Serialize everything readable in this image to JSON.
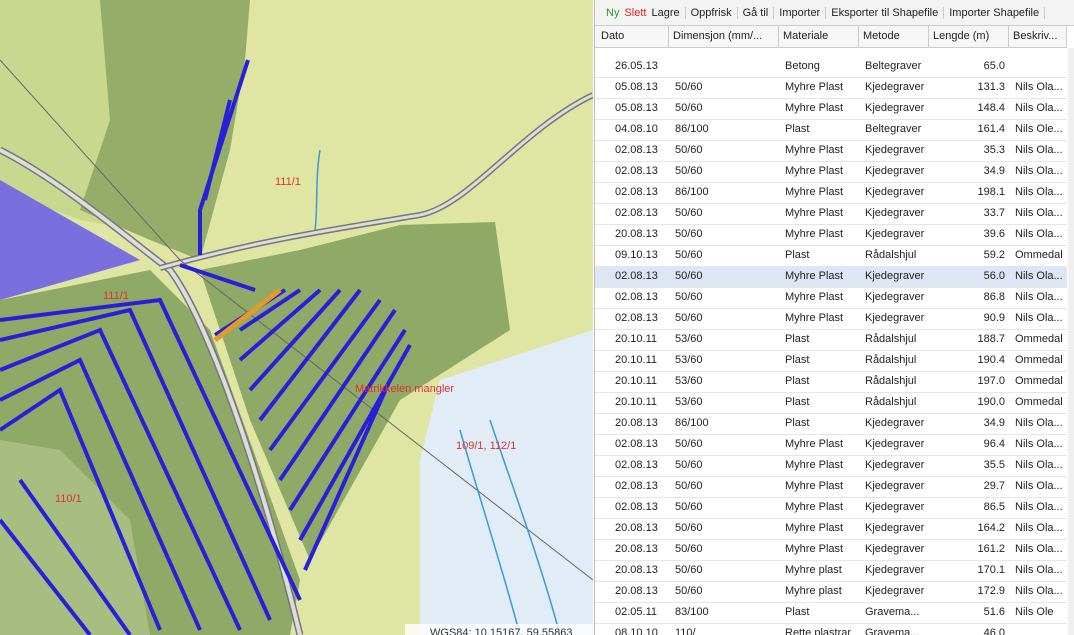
{
  "toolbar": {
    "buttons": [
      "Ny",
      "Slett",
      "Lagre",
      "Oppfrisk",
      "Gå til",
      "Importer",
      "Eksporter til Shapefile",
      "Importer Shapefile"
    ]
  },
  "map": {
    "labels": [
      "111/1",
      "111/1",
      "109/1, 112/1",
      "110/1",
      "Matrikkelen mangler",
      "WGS84: 10.15167, 59.55863"
    ]
  },
  "table": {
    "columns": [
      "Dato",
      "Dimensjon (mm/...",
      "Materiale",
      "Metode",
      "Lengde (m)",
      "Beskriv..."
    ],
    "selected_row": 10,
    "rows": [
      [
        "26.05.13",
        "",
        "Betong",
        "Beltegraver",
        "65.0",
        ""
      ],
      [
        "05.08.13",
        "50/60",
        "Myhre Plast",
        "Kjedegraver",
        "131.3",
        "Nils Ola..."
      ],
      [
        "05.08.13",
        "50/60",
        "Myhre Plast",
        "Kjedegraver",
        "148.4",
        "Nils Ola..."
      ],
      [
        "04.08.10",
        "86/100",
        "Plast",
        "Beltegraver",
        "161.4",
        "Nils Ole..."
      ],
      [
        "02.08.13",
        "50/60",
        "Myhre Plast",
        "Kjedegraver",
        "35.3",
        "Nils Ola..."
      ],
      [
        "02.08.13",
        "50/60",
        "Myhre Plast",
        "Kjedegraver",
        "34.9",
        "Nils Ola..."
      ],
      [
        "02.08.13",
        "86/100",
        "Myhre Plast",
        "Kjedegraver",
        "198.1",
        "Nils Ola..."
      ],
      [
        "02.08.13",
        "50/60",
        "Myhre Plast",
        "Kjedegraver",
        "33.7",
        "Nils Ola..."
      ],
      [
        "20.08.13",
        "50/60",
        "Myhre Plast",
        "Kjedegraver",
        "39.6",
        "Nils Ola..."
      ],
      [
        "09.10.13",
        "50/60",
        "Plast",
        "Rådalshjul",
        "59.2",
        "Ommedal"
      ],
      [
        "02.08.13",
        "50/60",
        "Myhre Plast",
        "Kjedegraver",
        "56.0",
        "Nils Ola..."
      ],
      [
        "02.08.13",
        "50/60",
        "Myhre Plast",
        "Kjedegraver",
        "86.8",
        "Nils Ola..."
      ],
      [
        "02.08.13",
        "50/60",
        "Myhre Plast",
        "Kjedegraver",
        "90.9",
        "Nils Ola..."
      ],
      [
        "20.10.11",
        "53/60",
        "Plast",
        "Rådalshjul",
        "188.7",
        "Ommedal"
      ],
      [
        "20.10.11",
        "53/60",
        "Plast",
        "Rådalshjul",
        "190.4",
        "Ommedal"
      ],
      [
        "20.10.11",
        "53/60",
        "Plast",
        "Rådalshjul",
        "197.0",
        "Ommedal"
      ],
      [
        "20.10.11",
        "53/60",
        "Plast",
        "Rådalshjul",
        "190.0",
        "Ommedal"
      ],
      [
        "20.08.13",
        "86/100",
        "Plast",
        "Kjedegraver",
        "34.9",
        "Nils Ola..."
      ],
      [
        "02.08.13",
        "50/60",
        "Myhre Plast",
        "Kjedegraver",
        "96.4",
        "Nils Ola..."
      ],
      [
        "02.08.13",
        "50/60",
        "Myhre Plast",
        "Kjedegraver",
        "35.5",
        "Nils Ola..."
      ],
      [
        "02.08.13",
        "50/60",
        "Myhre Plast",
        "Kjedegraver",
        "29.7",
        "Nils Ola..."
      ],
      [
        "02.08.13",
        "50/60",
        "Myhre Plast",
        "Kjedegraver",
        "86.5",
        "Nils Ola..."
      ],
      [
        "20.08.13",
        "50/60",
        "Myhre Plast",
        "Kjedegraver",
        "164.2",
        "Nils Ola..."
      ],
      [
        "20.08.13",
        "50/60",
        "Myhre Plast",
        "Kjedegraver",
        "161.2",
        "Nils Ola..."
      ],
      [
        "20.08.13",
        "50/60",
        "Myhre plast",
        "Kjedegraver",
        "170.1",
        "Nils Ola..."
      ],
      [
        "20.08.13",
        "50/60",
        "Myhre plast",
        "Kjedegraver",
        "172.9",
        "Nils Ola..."
      ],
      [
        "02.05.11",
        "83/100",
        "Plast",
        "Gravema...",
        "51.6",
        "Nils Ole"
      ],
      [
        "08.10.10",
        "110/",
        "Rette plastrar",
        "Gravema...",
        "46.0",
        ""
      ]
    ]
  }
}
